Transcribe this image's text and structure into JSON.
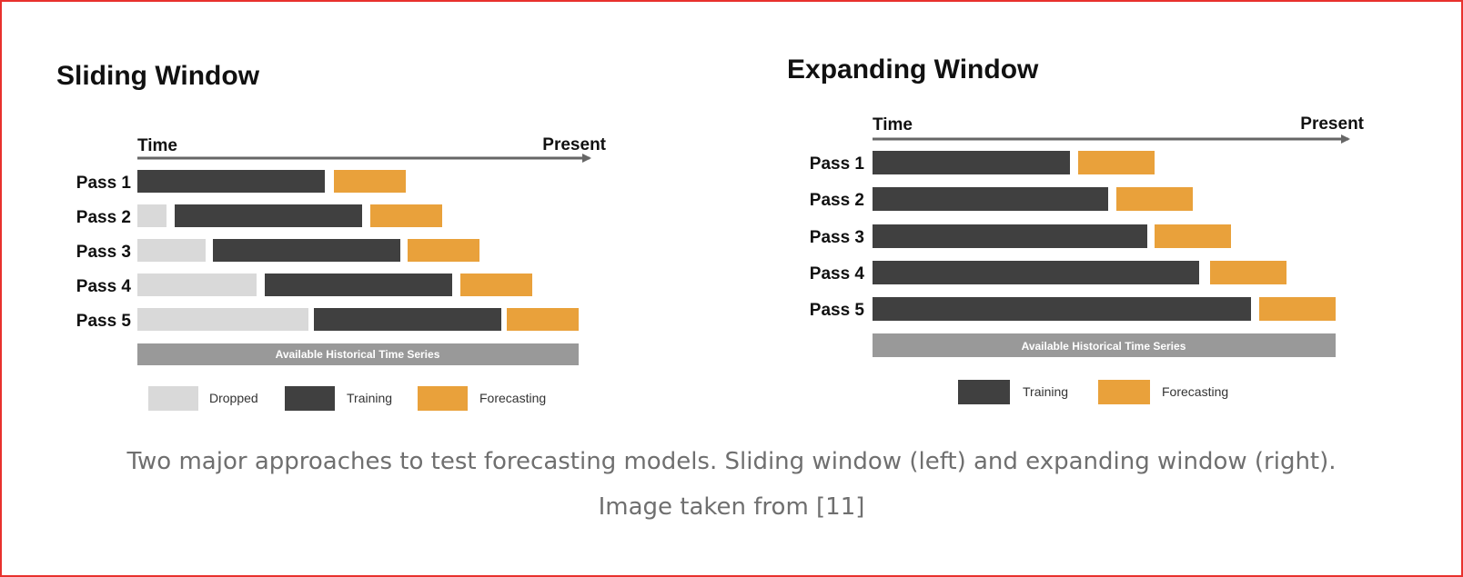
{
  "colors": {
    "dropped": "#d9d9d9",
    "training": "#404040",
    "forecasting": "#e9a13b",
    "history_bar": "#999999",
    "axis": "#666666",
    "frame_border": "#e8312d"
  },
  "sliding": {
    "title": "Sliding Window",
    "axis_start": "Time",
    "axis_end": "Present",
    "history_label": "Available Historical Time Series",
    "passes": [
      "Pass 1",
      "Pass 2",
      "Pass 3",
      "Pass 4",
      "Pass 5"
    ],
    "legend": {
      "dropped": "Dropped",
      "training": "Training",
      "forecasting": "Forecasting"
    }
  },
  "expanding": {
    "title": "Expanding Window",
    "axis_start": "Time",
    "axis_end": "Present",
    "history_label": "Available Historical Time Series",
    "passes": [
      "Pass 1",
      "Pass 2",
      "Pass 3",
      "Pass 4",
      "Pass 5"
    ],
    "legend": {
      "training": "Training",
      "forecasting": "Forecasting"
    }
  },
  "caption": {
    "line1": "Two major approaches to test forecasting models. Sliding window (left) and expanding window (right).",
    "line2": "Image taken from [11]"
  }
}
